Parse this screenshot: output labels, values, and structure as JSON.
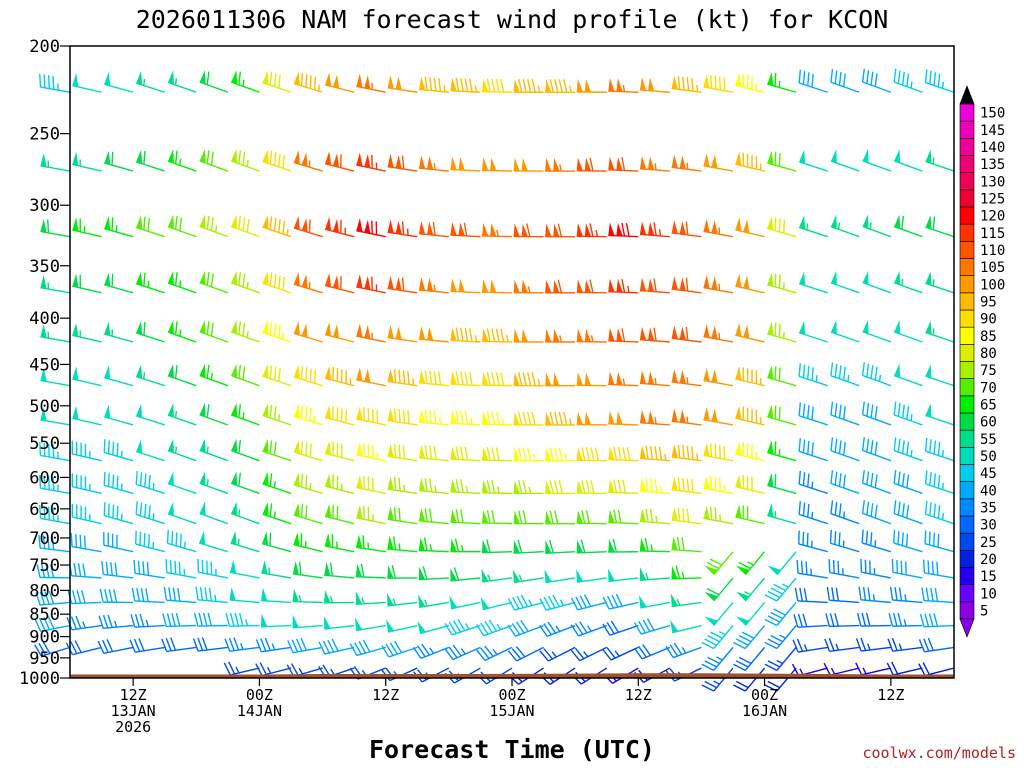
{
  "chart_data": {
    "type": "wind_barb_profile",
    "title": "2026011306 NAM forecast wind profile (kt) for KCON",
    "xlabel": "Forecast Time (UTC)",
    "credit": "coolwx.com/models",
    "ylim": [
      1000,
      200
    ],
    "yticks": [
      "200",
      "250",
      "300",
      "350",
      "400",
      "450",
      "500",
      "550",
      "600",
      "650",
      "700",
      "750",
      "800",
      "850",
      "900",
      "950",
      "1000"
    ],
    "ytick_values": [
      200,
      250,
      300,
      350,
      400,
      450,
      500,
      550,
      600,
      650,
      700,
      750,
      800,
      850,
      900,
      950,
      1000
    ],
    "xlim_hours": [
      0,
      84
    ],
    "xticks": [
      {
        "hour": 6,
        "lines": [
          "12Z",
          "13JAN",
          "2026"
        ]
      },
      {
        "hour": 18,
        "lines": [
          "00Z",
          "14JAN"
        ]
      },
      {
        "hour": 30,
        "lines": [
          "12Z"
        ]
      },
      {
        "hour": 42,
        "lines": [
          "00Z",
          "15JAN"
        ]
      },
      {
        "hour": 54,
        "lines": [
          "12Z"
        ]
      },
      {
        "hour": 66,
        "lines": [
          "00Z",
          "16JAN"
        ]
      },
      {
        "hour": 78,
        "lines": [
          "12Z"
        ]
      }
    ],
    "levels": [
      225,
      275,
      325,
      375,
      425,
      475,
      525,
      575,
      625,
      675,
      725,
      775,
      825,
      875,
      925,
      975
    ],
    "level_ranges": [
      [
        0,
        84
      ],
      [
        0,
        84
      ],
      [
        0,
        84
      ],
      [
        0,
        84
      ],
      [
        0,
        84
      ],
      [
        0,
        84
      ],
      [
        0,
        84
      ],
      [
        0,
        84
      ],
      [
        0,
        84
      ],
      [
        0,
        84
      ],
      [
        0,
        84
      ],
      [
        0,
        84
      ],
      [
        0,
        84
      ],
      [
        0,
        84
      ],
      [
        0,
        84
      ],
      [
        17,
        84
      ]
    ],
    "hours": [
      0,
      3,
      6,
      9,
      12,
      15,
      18,
      21,
      24,
      27,
      30,
      33,
      36,
      39,
      42,
      45,
      48,
      51,
      54,
      57,
      60,
      63,
      66,
      69,
      72,
      75,
      78,
      81,
      84
    ],
    "speed_profile": [
      {
        "h": 0,
        "upper": 60,
        "mid": 48,
        "low": 38
      },
      {
        "h": 6,
        "upper": 65,
        "mid": 48,
        "low": 36
      },
      {
        "h": 12,
        "upper": 70,
        "mid": 55,
        "low": 38
      },
      {
        "h": 18,
        "upper": 80,
        "mid": 65,
        "low": 45
      },
      {
        "h": 24,
        "upper": 110,
        "mid": 85,
        "low": 50
      },
      {
        "h": 30,
        "upper": 120,
        "mid": 90,
        "low": 50
      },
      {
        "h": 36,
        "upper": 110,
        "mid": 85,
        "low": 48
      },
      {
        "h": 42,
        "upper": 105,
        "mid": 85,
        "low": 45
      },
      {
        "h": 48,
        "upper": 112,
        "mid": 95,
        "low": 35
      },
      {
        "h": 54,
        "upper": 118,
        "mid": 100,
        "low": 30
      },
      {
        "h": 60,
        "upper": 110,
        "mid": 105,
        "low": 48
      },
      {
        "h": 66,
        "upper": 100,
        "mid": 95,
        "low": 40
      },
      {
        "h": 72,
        "upper": 55,
        "mid": 40,
        "low": 30
      },
      {
        "h": 78,
        "upper": 55,
        "mid": 42,
        "low": 32
      },
      {
        "h": 84,
        "upper": 60,
        "mid": 48,
        "low": 38
      }
    ],
    "surface_pressure": [
      {
        "h": 0,
        "p": 991
      },
      {
        "h": 18,
        "p": 991
      },
      {
        "h": 24,
        "p": 990
      },
      {
        "h": 36,
        "p": 990
      },
      {
        "h": 48,
        "p": 989
      },
      {
        "h": 54,
        "p": 988
      },
      {
        "h": 60,
        "p": 988
      },
      {
        "h": 66,
        "p": 989
      },
      {
        "h": 72,
        "p": 990
      },
      {
        "h": 78,
        "p": 991
      },
      {
        "h": 84,
        "p": 991
      }
    ],
    "colorbar": {
      "labels": [
        "5",
        "10",
        "15",
        "20",
        "25",
        "30",
        "35",
        "40",
        "45",
        "50",
        "55",
        "60",
        "65",
        "70",
        "75",
        "80",
        "85",
        "90",
        "95",
        "100",
        "105",
        "110",
        "115",
        "120",
        "125",
        "130",
        "135",
        "140",
        "145",
        "150"
      ],
      "colors": [
        "#8a00e6",
        "#6a00ff",
        "#2200ee",
        "#0022dd",
        "#0048ee",
        "#0068ff",
        "#0088ff",
        "#00aaff",
        "#00ccee",
        "#00ddbb",
        "#00dd88",
        "#00dd44",
        "#00ee00",
        "#55ee00",
        "#aaee00",
        "#ddee00",
        "#ffff00",
        "#ffdd00",
        "#ffbb00",
        "#ff9900",
        "#ff7700",
        "#ff5500",
        "#ff3300",
        "#ff0000",
        "#ee0033",
        "#ee0055",
        "#ee0077",
        "#ee0099",
        "#ee00bb",
        "#ee00dd"
      ],
      "min_arrow_color": "#8a00e6",
      "max_arrow_color": "#000000"
    },
    "ground_color": "#a0522d"
  }
}
